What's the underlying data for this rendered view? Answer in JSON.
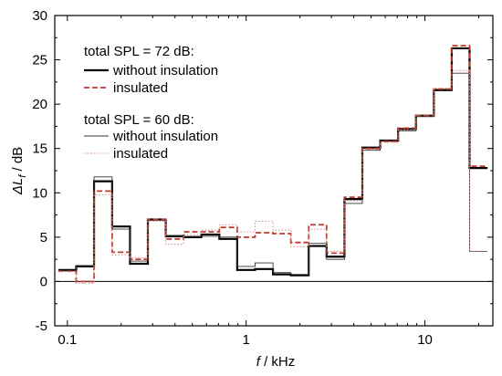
{
  "chart_data": {
    "type": "line",
    "xscale": "log",
    "xlim": [
      0.085,
      24
    ],
    "ylim": [
      -5,
      30
    ],
    "grid": false,
    "legend_position": "top-left",
    "x_ticks": [
      0.1,
      1,
      10
    ],
    "x_tick_labels": [
      "0.1",
      "1",
      "10"
    ],
    "y_ticks": [
      -5,
      0,
      5,
      10,
      15,
      20,
      25,
      30
    ],
    "y_tick_labels": [
      "-5",
      "0",
      "5",
      "10",
      "15",
      "20",
      "25",
      "30"
    ],
    "xlabel_var": "f",
    "xlabel_unit": " / kHz",
    "ylabel_var": "ΔL",
    "ylabel_sub": "f",
    "ylabel_unit": " / dB",
    "zero_line": 0,
    "legend_groups": [
      {
        "title": "total SPL = 72 dB:",
        "entries": [
          "without insulation",
          "insulated"
        ]
      },
      {
        "title": "total SPL = 60 dB:",
        "entries": [
          "without insulation",
          "insulated"
        ]
      }
    ],
    "band_edges": [
      0.089,
      0.112,
      0.141,
      0.178,
      0.224,
      0.282,
      0.355,
      0.447,
      0.562,
      0.708,
      0.891,
      1.122,
      1.413,
      1.778,
      2.239,
      2.818,
      3.548,
      4.467,
      5.623,
      7.079,
      8.913,
      11.22,
      14.13,
      17.78,
      22.39
    ],
    "series": [
      {
        "name": "without insulation",
        "group": 0,
        "color": "#000000",
        "stroke": "thick-solid",
        "values": [
          1.3,
          1.7,
          11.3,
          6.2,
          2.0,
          7.0,
          5.1,
          5.0,
          5.3,
          4.8,
          1.3,
          1.4,
          0.8,
          0.7,
          4.0,
          2.8,
          9.3,
          15.1,
          15.9,
          17.2,
          18.7,
          21.6,
          26.3,
          12.8
        ]
      },
      {
        "name": "insulated",
        "group": 0,
        "color": "#c0392b",
        "stroke": "thick-dashed",
        "values": [
          1.2,
          0.0,
          10.2,
          3.3,
          2.5,
          7.0,
          4.8,
          5.6,
          5.6,
          6.1,
          5.0,
          5.5,
          5.4,
          4.4,
          6.4,
          3.2,
          9.5,
          15.0,
          15.8,
          17.3,
          18.7,
          21.7,
          26.6,
          13.0
        ]
      },
      {
        "name": "without insulation",
        "group": 1,
        "color": "#333333",
        "stroke": "thin-solid",
        "values": [
          1.2,
          1.8,
          11.8,
          5.9,
          2.3,
          6.9,
          5.2,
          5.1,
          5.1,
          5.0,
          1.7,
          2.1,
          1.0,
          0.8,
          4.3,
          2.5,
          8.8,
          14.8,
          15.9,
          17.0,
          18.6,
          21.5,
          23.5,
          3.4
        ]
      },
      {
        "name": "insulated",
        "group": 1,
        "color": "#d98880",
        "stroke": "thin-dotted",
        "values": [
          1.1,
          -0.2,
          9.8,
          3.0,
          2.7,
          6.8,
          4.2,
          5.3,
          5.8,
          6.4,
          5.6,
          6.8,
          5.8,
          3.9,
          5.9,
          3.4,
          9.1,
          14.9,
          15.7,
          17.1,
          18.8,
          21.8,
          23.8,
          3.4
        ]
      }
    ]
  }
}
